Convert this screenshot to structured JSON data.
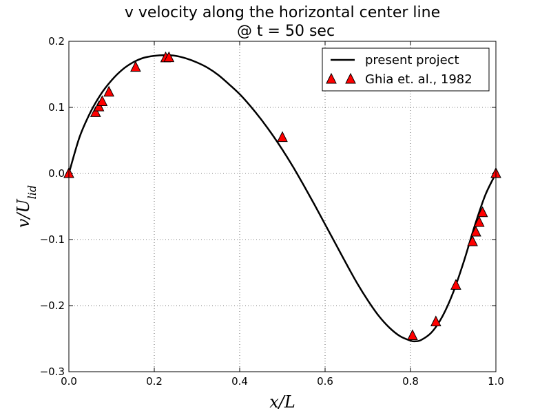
{
  "chart_data": {
    "type": "line",
    "title_lines": [
      "v velocity along the horizontal center line",
      "@ t = 50 sec"
    ],
    "xlabel": "x/L",
    "ylabel_main": "v/U",
    "ylabel_sub": "lid",
    "xlim": [
      0.0,
      1.0
    ],
    "ylim": [
      -0.3,
      0.2
    ],
    "xticks": [
      0.0,
      0.2,
      0.4,
      0.6,
      0.8,
      1.0
    ],
    "xtick_labels": [
      "0.0",
      "0.2",
      "0.4",
      "0.6",
      "0.8",
      "1.0"
    ],
    "yticks": [
      -0.3,
      -0.2,
      -0.1,
      0.0,
      0.1,
      0.2
    ],
    "ytick_labels": [
      "−0.3",
      "−0.2",
      "−0.1",
      "0.0",
      "0.1",
      "0.2"
    ],
    "grid": true,
    "legend_position": "top-right",
    "series": [
      {
        "name": "present project",
        "style": "line",
        "color": "#000000",
        "x": [
          0.0,
          0.025,
          0.05,
          0.075,
          0.1,
          0.125,
          0.15,
          0.175,
          0.2,
          0.225,
          0.25,
          0.275,
          0.3,
          0.325,
          0.35,
          0.375,
          0.4,
          0.425,
          0.45,
          0.475,
          0.5,
          0.525,
          0.55,
          0.575,
          0.6,
          0.625,
          0.65,
          0.675,
          0.7,
          0.725,
          0.75,
          0.775,
          0.8,
          0.81,
          0.825,
          0.85,
          0.875,
          0.9,
          0.925,
          0.95,
          0.975,
          1.0
        ],
        "y": [
          0.0,
          0.055,
          0.092,
          0.12,
          0.141,
          0.157,
          0.168,
          0.175,
          0.178,
          0.179,
          0.178,
          0.174,
          0.168,
          0.16,
          0.149,
          0.135,
          0.12,
          0.102,
          0.082,
          0.06,
          0.036,
          0.01,
          -0.018,
          -0.047,
          -0.077,
          -0.107,
          -0.137,
          -0.166,
          -0.192,
          -0.215,
          -0.233,
          -0.246,
          -0.253,
          -0.254,
          -0.252,
          -0.24,
          -0.216,
          -0.18,
          -0.133,
          -0.08,
          -0.033,
          0.0
        ]
      },
      {
        "name": "Ghia et. al., 1982",
        "style": "marker",
        "marker": "triangle",
        "color": "#ff0000",
        "x": [
          0.0,
          0.0625,
          0.0703,
          0.0781,
          0.0938,
          0.1563,
          0.2266,
          0.2344,
          0.5,
          0.8047,
          0.8594,
          0.9063,
          0.9453,
          0.9531,
          0.9609,
          0.9688,
          1.0
        ],
        "y": [
          0.0,
          0.0923,
          0.1009,
          0.1089,
          0.1232,
          0.1608,
          0.1751,
          0.1754,
          0.0545,
          -0.2453,
          -0.2245,
          -0.1691,
          -0.1031,
          -0.0886,
          -0.0739,
          -0.0591,
          0.0
        ]
      }
    ]
  }
}
